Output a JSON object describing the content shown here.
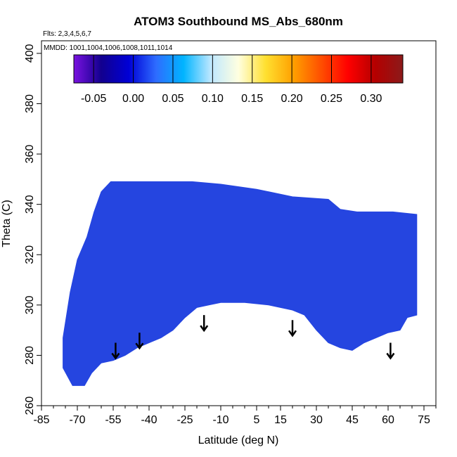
{
  "chart_data": {
    "type": "heatmap",
    "title": "ATOM3 Southbound MS_Abs_680nm",
    "flights_note": "Flts: 2,3,4,5,6,7",
    "dates_note": "MMDD: 1001,1004,1006,1008,1011,1014",
    "xlabel": "Latitude (deg N)",
    "ylabel": "Theta (C)",
    "xlim": [
      -85,
      80
    ],
    "ylim": [
      260,
      405
    ],
    "xticks": [
      -85,
      -70,
      -55,
      -40,
      -25,
      -10,
      5,
      15,
      30,
      45,
      60,
      75
    ],
    "yticks": [
      260,
      280,
      300,
      320,
      340,
      360,
      380,
      400
    ],
    "colorbar": {
      "range": [
        -0.075,
        0.34
      ],
      "ticks": [
        -0.05,
        0.0,
        0.05,
        0.1,
        0.15,
        0.2,
        0.25,
        0.3
      ],
      "tick_labels": [
        "-0.05",
        "0.00",
        "0.05",
        "0.10",
        "0.15",
        "0.20",
        "0.25",
        "0.30"
      ],
      "colors": [
        "#7a12e0",
        "#12008e",
        "#0000d6",
        "#2e6cff",
        "#00b4ff",
        "#bfe8ff",
        "#ffffe0",
        "#ffe030",
        "#ffa000",
        "#ff5000",
        "#ff0000",
        "#b40000",
        "#8b1a1a"
      ]
    },
    "field_color": "#2545e0",
    "data_upper_boundary": [
      {
        "lat": -76,
        "theta": 287
      },
      {
        "lat": -73,
        "theta": 305
      },
      {
        "lat": -70,
        "theta": 318
      },
      {
        "lat": -66,
        "theta": 327
      },
      {
        "lat": -63,
        "theta": 337
      },
      {
        "lat": -60,
        "theta": 345
      },
      {
        "lat": -56,
        "theta": 349
      },
      {
        "lat": -40,
        "theta": 349
      },
      {
        "lat": -22,
        "theta": 349
      },
      {
        "lat": -10,
        "theta": 348
      },
      {
        "lat": 5,
        "theta": 346
      },
      {
        "lat": 20,
        "theta": 343
      },
      {
        "lat": 35,
        "theta": 342
      },
      {
        "lat": 40,
        "theta": 338
      },
      {
        "lat": 47,
        "theta": 337
      },
      {
        "lat": 62,
        "theta": 337
      },
      {
        "lat": 72,
        "theta": 336
      },
      {
        "lat": 72,
        "theta": 296
      }
    ],
    "data_lower_boundary": [
      {
        "lat": 72,
        "theta": 296
      },
      {
        "lat": 68,
        "theta": 295
      },
      {
        "lat": 65,
        "theta": 290
      },
      {
        "lat": 60,
        "theta": 289
      },
      {
        "lat": 55,
        "theta": 287
      },
      {
        "lat": 50,
        "theta": 285
      },
      {
        "lat": 45,
        "theta": 282
      },
      {
        "lat": 40,
        "theta": 283
      },
      {
        "lat": 35,
        "theta": 285
      },
      {
        "lat": 30,
        "theta": 290
      },
      {
        "lat": 25,
        "theta": 296
      },
      {
        "lat": 20,
        "theta": 298
      },
      {
        "lat": 10,
        "theta": 300
      },
      {
        "lat": 0,
        "theta": 301
      },
      {
        "lat": -10,
        "theta": 301
      },
      {
        "lat": -15,
        "theta": 300
      },
      {
        "lat": -20,
        "theta": 299
      },
      {
        "lat": -25,
        "theta": 295
      },
      {
        "lat": -30,
        "theta": 290
      },
      {
        "lat": -35,
        "theta": 287
      },
      {
        "lat": -40,
        "theta": 285
      },
      {
        "lat": -45,
        "theta": 283
      },
      {
        "lat": -50,
        "theta": 280
      },
      {
        "lat": -55,
        "theta": 278
      },
      {
        "lat": -60,
        "theta": 277
      },
      {
        "lat": -64,
        "theta": 273
      },
      {
        "lat": -67,
        "theta": 268
      },
      {
        "lat": -72,
        "theta": 268
      },
      {
        "lat": -76,
        "theta": 275
      }
    ],
    "arrows": [
      {
        "lat": -54,
        "theta": 285
      },
      {
        "lat": -44,
        "theta": 289
      },
      {
        "lat": -17,
        "theta": 296
      },
      {
        "lat": 20,
        "theta": 294
      },
      {
        "lat": 61,
        "theta": 285
      }
    ]
  }
}
